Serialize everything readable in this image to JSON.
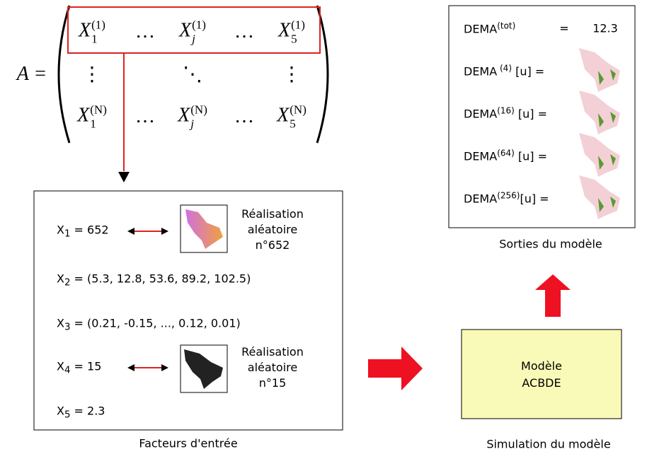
{
  "matrix": {
    "lhs": "A =",
    "rows": [
      [
        {
          "base": "X",
          "sub": "1",
          "sup": "(1)"
        },
        {
          "text": "…"
        },
        {
          "base": "X",
          "sub": "j",
          "sup": "(1)"
        },
        {
          "text": "…"
        },
        {
          "base": "X",
          "sub": "5",
          "sup": "(1)"
        }
      ],
      [
        {
          "text": "⋮"
        },
        {
          "text": "⋱"
        },
        {
          "text": "⋮"
        }
      ],
      [
        {
          "base": "X",
          "sub": "1",
          "sup": "(N)"
        },
        {
          "text": "…"
        },
        {
          "base": "X",
          "sub": "j",
          "sup": "(N)"
        },
        {
          "text": "…"
        },
        {
          "base": "X",
          "sub": "5",
          "sup": "(N)"
        }
      ]
    ]
  },
  "inputs": {
    "caption": "Facteurs d'entrée",
    "factors": [
      {
        "base": "X",
        "sub": "1",
        "rest": " = 652",
        "image_label": [
          "Réalisation",
          "aléatoire",
          "n°652"
        ]
      },
      {
        "base": "X",
        "sub": "2",
        "rest": " = (5.3, 12.8, 53.6, 89.2, 102.5)"
      },
      {
        "base": "X",
        "sub": "3",
        "rest": " = (0.21, -0.15, ..., 0.12, 0.01)"
      },
      {
        "base": "X",
        "sub": "4",
        "rest": " = 15",
        "image_label": [
          "Réalisation",
          "aléatoire",
          "n°15"
        ]
      },
      {
        "base": "X",
        "sub": "5",
        "rest": " = 2.3"
      }
    ]
  },
  "model": {
    "label": [
      "Modèle",
      "ACBDE"
    ],
    "caption": "Simulation du modèle"
  },
  "outputs": {
    "caption": "Sorties du modèle",
    "rows": [
      {
        "base": "DEMA",
        "sup": "(tot)",
        "rest": "=",
        "value": 12.3
      },
      {
        "base": "DEMA",
        "sup": " (4)",
        "rest": " [u] ="
      },
      {
        "base": "DEMA",
        "sup": "(16)",
        "rest": " [u] ="
      },
      {
        "base": "DEMA",
        "sup": "(64)",
        "rest": " [u] ="
      },
      {
        "base": "DEMA",
        "sup": "(256)",
        "rest": "[u] ="
      }
    ]
  }
}
